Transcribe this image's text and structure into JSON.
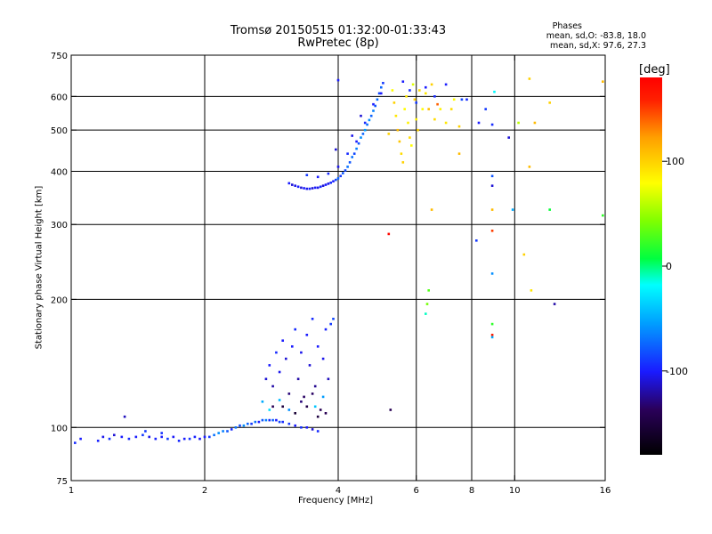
{
  "header": {
    "title_line1": "Tromsø 20150515 01:32:00-01:33:43",
    "title_line2": "RwPretec (8p)"
  },
  "phases": {
    "heading": "Phases",
    "line_o": "mean, sd,O: -83.8, 18.0",
    "line_x": "mean, sd,X:  97.6, 27.3"
  },
  "colorbar": {
    "unit": "[deg]",
    "ticks": [
      {
        "value": 100,
        "label": "100"
      },
      {
        "value": 0,
        "label": "0"
      },
      {
        "value": -100,
        "label": "-100"
      }
    ],
    "range": [
      -180,
      180
    ]
  },
  "chart_data": {
    "type": "scatter",
    "title": "Tromsø 20150515 01:32:00-01:33:43 RwPretec (8p)",
    "xlabel": "Frequency [MHz]",
    "ylabel": "Stationary phase Virtual Height [km]",
    "x_scale": "log",
    "y_scale": "log",
    "xlim": [
      1,
      16
    ],
    "ylim": [
      75,
      750
    ],
    "x_ticks": [
      {
        "value": 1,
        "label": "1"
      },
      {
        "value": 2,
        "label": "2"
      },
      {
        "value": 4,
        "label": "4"
      },
      {
        "value": 6,
        "label": "6"
      },
      {
        "value": 8,
        "label": "8"
      },
      {
        "value": 10,
        "label": "10"
      },
      {
        "value": 16,
        "label": "16"
      }
    ],
    "y_ticks": [
      {
        "value": 75,
        "label": "75"
      },
      {
        "value": 100,
        "label": "100"
      },
      {
        "value": 200,
        "label": "200"
      },
      {
        "value": 300,
        "label": "300"
      },
      {
        "value": 400,
        "label": "400"
      },
      {
        "value": 500,
        "label": "500"
      },
      {
        "value": 600,
        "label": "600"
      },
      {
        "value": 750,
        "label": "750"
      }
    ],
    "grid_x": [
      2,
      4,
      6,
      8,
      10
    ],
    "grid_y": [
      100,
      200,
      300,
      400,
      500,
      600
    ],
    "grid": true,
    "color_encoding": "phase [deg]",
    "series": [
      {
        "description": "E-layer trace",
        "points": [
          [
            1.02,
            92,
            -95
          ],
          [
            1.05,
            94,
            -100
          ],
          [
            1.15,
            93,
            -98
          ],
          [
            1.18,
            95,
            -105
          ],
          [
            1.22,
            94,
            -92
          ],
          [
            1.25,
            96,
            -110
          ],
          [
            1.3,
            95,
            -100
          ],
          [
            1.35,
            94,
            -95
          ],
          [
            1.4,
            95,
            -100
          ],
          [
            1.45,
            96,
            -90
          ],
          [
            1.5,
            95,
            -105
          ],
          [
            1.55,
            94,
            -98
          ],
          [
            1.6,
            95,
            -100
          ],
          [
            1.65,
            94,
            -88
          ],
          [
            1.7,
            95,
            -102
          ],
          [
            1.75,
            93,
            -96
          ],
          [
            1.8,
            94,
            -100
          ],
          [
            1.85,
            94,
            -92
          ],
          [
            1.9,
            95,
            -98
          ],
          [
            1.95,
            94,
            -104
          ],
          [
            2.0,
            95,
            -100
          ],
          [
            2.05,
            95,
            -90
          ],
          [
            2.1,
            96,
            -70
          ],
          [
            2.15,
            97,
            -60
          ],
          [
            2.2,
            98,
            -65
          ],
          [
            2.25,
            98,
            -80
          ],
          [
            2.3,
            99,
            -95
          ],
          [
            2.35,
            100,
            -70
          ],
          [
            2.4,
            101,
            -85
          ],
          [
            2.45,
            101,
            -60
          ],
          [
            2.5,
            102,
            -75
          ],
          [
            2.55,
            102,
            -90
          ],
          [
            2.6,
            103,
            -70
          ],
          [
            2.65,
            103,
            -100
          ],
          [
            2.7,
            104,
            -80
          ],
          [
            2.75,
            104,
            -65
          ],
          [
            2.8,
            104,
            -95
          ],
          [
            2.85,
            104,
            -75
          ],
          [
            2.9,
            104,
            -100
          ],
          [
            2.95,
            103,
            -85
          ],
          [
            3.0,
            103,
            -95
          ],
          [
            3.1,
            102,
            -90
          ],
          [
            3.2,
            101,
            -100
          ],
          [
            3.3,
            100,
            -92
          ],
          [
            3.4,
            100,
            -100
          ],
          [
            3.5,
            99,
            -110
          ],
          [
            3.6,
            98,
            -95
          ],
          [
            1.32,
            106,
            -115
          ],
          [
            1.47,
            98,
            -90
          ],
          [
            1.6,
            97,
            -92
          ]
        ]
      },
      {
        "description": "Es / spread echoes 2.7-3.9 MHz",
        "points": [
          [
            2.75,
            130,
            -110
          ],
          [
            2.8,
            140,
            -100
          ],
          [
            2.85,
            125,
            -120
          ],
          [
            2.9,
            150,
            -95
          ],
          [
            2.95,
            135,
            -105
          ],
          [
            3.0,
            160,
            -100
          ],
          [
            3.05,
            145,
            -110
          ],
          [
            3.1,
            120,
            -130
          ],
          [
            3.15,
            155,
            -100
          ],
          [
            3.2,
            170,
            -95
          ],
          [
            3.25,
            130,
            -120
          ],
          [
            3.3,
            150,
            -105
          ],
          [
            3.35,
            118,
            -135
          ],
          [
            3.4,
            165,
            -100
          ],
          [
            3.45,
            140,
            -110
          ],
          [
            3.5,
            180,
            -95
          ],
          [
            3.55,
            125,
            -125
          ],
          [
            3.6,
            155,
            -100
          ],
          [
            3.65,
            110,
            -140
          ],
          [
            3.7,
            145,
            -105
          ],
          [
            3.75,
            170,
            -98
          ],
          [
            3.8,
            130,
            -115
          ],
          [
            3.85,
            175,
            -90
          ],
          [
            3.9,
            180,
            -85
          ],
          [
            3.0,
            112,
            -150
          ],
          [
            3.2,
            108,
            -155
          ],
          [
            3.4,
            112,
            -145
          ],
          [
            3.6,
            106,
            -150
          ],
          [
            2.85,
            112,
            -140
          ],
          [
            3.3,
            115,
            -130
          ],
          [
            3.5,
            120,
            -135
          ],
          [
            3.75,
            108,
            -140
          ],
          [
            2.7,
            115,
            -50
          ],
          [
            2.8,
            110,
            -30
          ],
          [
            2.95,
            116,
            -45
          ],
          [
            3.1,
            110,
            -60
          ],
          [
            3.55,
            112,
            -40
          ],
          [
            3.7,
            118,
            -55
          ]
        ]
      },
      {
        "description": "F-layer trace",
        "points": [
          [
            3.1,
            375,
            -100
          ],
          [
            3.15,
            372,
            -110
          ],
          [
            3.2,
            370,
            -105
          ],
          [
            3.25,
            368,
            -100
          ],
          [
            3.3,
            366,
            -110
          ],
          [
            3.35,
            365,
            -100
          ],
          [
            3.4,
            364,
            -105
          ],
          [
            3.45,
            364,
            -98
          ],
          [
            3.5,
            365,
            -110
          ],
          [
            3.55,
            366,
            -100
          ],
          [
            3.6,
            366,
            -105
          ],
          [
            3.65,
            368,
            -95
          ],
          [
            3.7,
            370,
            -110
          ],
          [
            3.75,
            372,
            -100
          ],
          [
            3.8,
            374,
            -105
          ],
          [
            3.85,
            376,
            -95
          ],
          [
            3.9,
            379,
            -100
          ],
          [
            3.95,
            382,
            -85
          ],
          [
            4.0,
            385,
            -75
          ],
          [
            4.05,
            390,
            -90
          ],
          [
            4.1,
            396,
            -80
          ],
          [
            4.15,
            402,
            -85
          ],
          [
            4.2,
            410,
            -70
          ],
          [
            4.25,
            420,
            -80
          ],
          [
            4.3,
            432,
            -70
          ],
          [
            4.35,
            440,
            -85
          ],
          [
            4.4,
            452,
            -65
          ],
          [
            4.45,
            465,
            -80
          ],
          [
            4.5,
            480,
            -60
          ],
          [
            4.55,
            490,
            -75
          ],
          [
            4.6,
            500,
            -55
          ],
          [
            4.65,
            515,
            -70
          ],
          [
            4.7,
            528,
            -60
          ],
          [
            4.75,
            540,
            -75
          ],
          [
            4.8,
            555,
            -65
          ],
          [
            4.85,
            570,
            -80
          ],
          [
            4.9,
            590,
            -70
          ],
          [
            4.95,
            610,
            -85
          ],
          [
            5.0,
            630,
            -75
          ],
          [
            5.05,
            645,
            -90
          ],
          [
            4.0,
            655,
            -100
          ],
          [
            3.4,
            392,
            -90
          ],
          [
            3.6,
            388,
            -100
          ],
          [
            3.8,
            395,
            -95
          ],
          [
            4.0,
            410,
            -105
          ],
          [
            4.2,
            440,
            -95
          ],
          [
            4.4,
            470,
            -100
          ],
          [
            4.6,
            520,
            -95
          ],
          [
            4.8,
            575,
            -100
          ],
          [
            5.0,
            610,
            -100
          ],
          [
            3.95,
            450,
            -110
          ],
          [
            4.3,
            485,
            -105
          ],
          [
            4.5,
            540,
            -110
          ]
        ]
      },
      {
        "description": "X-mode / scattered echoes >5 MHz",
        "points": [
          [
            5.3,
            620,
            80
          ],
          [
            5.35,
            580,
            100
          ],
          [
            5.4,
            540,
            90
          ],
          [
            5.45,
            500,
            110
          ],
          [
            5.5,
            470,
            105
          ],
          [
            5.55,
            440,
            95
          ],
          [
            5.6,
            420,
            100
          ],
          [
            5.65,
            560,
            80
          ],
          [
            5.7,
            600,
            90
          ],
          [
            5.75,
            520,
            85
          ],
          [
            5.8,
            480,
            95
          ],
          [
            5.85,
            460,
            80
          ],
          [
            5.9,
            640,
            70
          ],
          [
            5.95,
            590,
            100
          ],
          [
            6.0,
            530,
            85
          ],
          [
            6.05,
            500,
            100
          ],
          [
            6.1,
            620,
            95
          ],
          [
            6.2,
            560,
            80
          ],
          [
            6.3,
            610,
            90
          ],
          [
            6.4,
            560,
            110
          ],
          [
            6.5,
            640,
            100
          ],
          [
            6.6,
            530,
            95
          ],
          [
            6.8,
            560,
            85
          ],
          [
            7.0,
            520,
            90
          ],
          [
            7.2,
            560,
            95
          ],
          [
            7.3,
            590,
            80
          ],
          [
            7.5,
            510,
            100
          ],
          [
            5.6,
            650,
            -100
          ],
          [
            5.8,
            620,
            -95
          ],
          [
            6.0,
            580,
            -90
          ],
          [
            6.3,
            630,
            -100
          ],
          [
            6.6,
            600,
            -95
          ],
          [
            7.0,
            640,
            -100
          ],
          [
            7.6,
            590,
            -85
          ],
          [
            8.6,
            560,
            -90
          ],
          [
            8.9,
            515,
            -95
          ],
          [
            8.9,
            390,
            -80
          ],
          [
            8.9,
            370,
            -110
          ],
          [
            8.9,
            325,
            110
          ],
          [
            8.9,
            290,
            150
          ],
          [
            8.9,
            230,
            -60
          ],
          [
            8.9,
            175,
            20
          ],
          [
            8.9,
            165,
            160
          ],
          [
            8.9,
            163,
            -50
          ],
          [
            9.0,
            615,
            -20
          ],
          [
            8.2,
            275,
            -90
          ],
          [
            8.3,
            520,
            -100
          ],
          [
            9.7,
            480,
            -110
          ],
          [
            9.9,
            325,
            -50
          ],
          [
            10.2,
            520,
            60
          ],
          [
            10.5,
            255,
            100
          ],
          [
            10.8,
            660,
            100
          ],
          [
            10.8,
            410,
            110
          ],
          [
            10.9,
            210,
            90
          ],
          [
            11.1,
            520,
            110
          ],
          [
            12.0,
            580,
            100
          ],
          [
            12.0,
            325,
            10
          ],
          [
            12.3,
            195,
            -120
          ],
          [
            7.8,
            590,
            -95
          ],
          [
            7.5,
            440,
            110
          ],
          [
            6.5,
            325,
            110
          ],
          [
            6.4,
            210,
            30
          ],
          [
            6.35,
            195,
            40
          ],
          [
            6.3,
            185,
            -10
          ],
          [
            6.7,
            575,
            140
          ],
          [
            5.2,
            285,
            175
          ],
          [
            5.25,
            110,
            -140
          ],
          [
            5.2,
            490,
            100
          ],
          [
            15.8,
            650,
            110
          ],
          [
            15.8,
            315,
            20
          ]
        ]
      }
    ]
  }
}
